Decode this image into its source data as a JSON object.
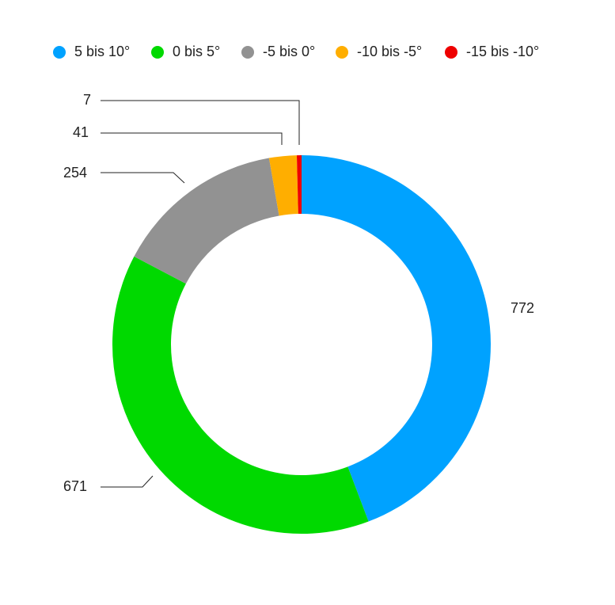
{
  "chart_data": {
    "type": "donut",
    "categories": [
      "5 bis 10°",
      "0 bis 5°",
      "-5 bis 0°",
      "-10 bis -5°",
      "-15 bis -10°"
    ],
    "values": [
      772,
      671,
      254,
      41,
      7
    ],
    "colors": [
      "#00a2ff",
      "#00d900",
      "#929292",
      "#ffae00",
      "#ee0000"
    ],
    "legend": "top"
  }
}
